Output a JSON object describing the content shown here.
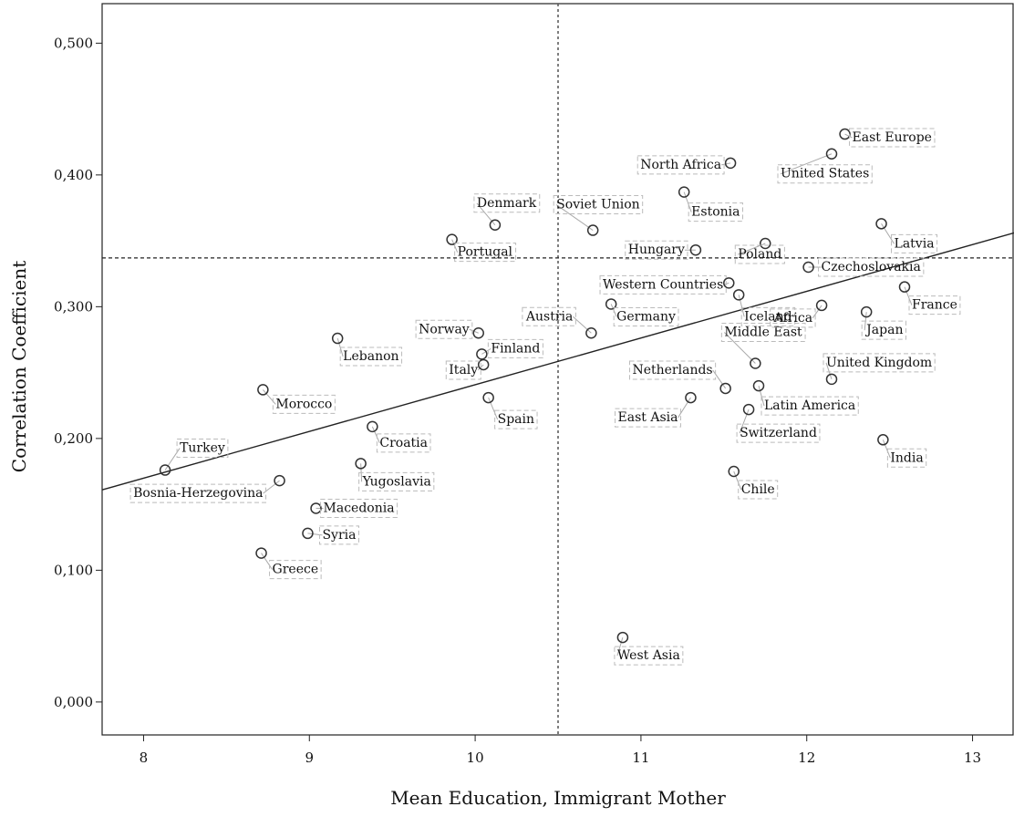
{
  "chart_data": {
    "type": "scatter",
    "xlabel": "Mean Education, Immigrant Mother",
    "ylabel": "Correlation Coefficient",
    "xlim": [
      7.75,
      13.25
    ],
    "ylim": [
      -0.025,
      0.53
    ],
    "x_ticks": [
      8,
      9,
      10,
      11,
      12,
      13
    ],
    "x_tick_labels": [
      "8",
      "9",
      "10",
      "11",
      "12",
      "13"
    ],
    "y_ticks": [
      0.0,
      0.1,
      0.2,
      0.3,
      0.4,
      0.5
    ],
    "y_tick_labels": [
      "0,000",
      "0,100",
      "0,200",
      "0,300",
      "0,400",
      "0,500"
    ],
    "reference_lines": {
      "vertical_x": 10.5,
      "horizontal_y": 0.337,
      "style": "dashed"
    },
    "fit_line": {
      "x": [
        7.75,
        13.25
      ],
      "y": [
        0.161,
        0.356
      ]
    },
    "points": [
      {
        "label": "Turkey",
        "x": 8.13,
        "y": 0.176
      },
      {
        "label": "Bosnia-Herzegovina",
        "x": 8.82,
        "y": 0.168
      },
      {
        "label": "Greece",
        "x": 8.71,
        "y": 0.113
      },
      {
        "label": "Syria",
        "x": 8.99,
        "y": 0.128
      },
      {
        "label": "Macedonia",
        "x": 9.04,
        "y": 0.147
      },
      {
        "label": "Morocco",
        "x": 8.72,
        "y": 0.237
      },
      {
        "label": "Lebanon",
        "x": 9.17,
        "y": 0.276
      },
      {
        "label": "Yugoslavia",
        "x": 9.31,
        "y": 0.181
      },
      {
        "label": "Croatia",
        "x": 9.38,
        "y": 0.209
      },
      {
        "label": "Portugal",
        "x": 9.86,
        "y": 0.351
      },
      {
        "label": "Denmark",
        "x": 10.12,
        "y": 0.362
      },
      {
        "label": "Norway",
        "x": 10.02,
        "y": 0.28
      },
      {
        "label": "Finland",
        "x": 10.04,
        "y": 0.264
      },
      {
        "label": "Italy",
        "x": 10.05,
        "y": 0.256
      },
      {
        "label": "Spain",
        "x": 10.08,
        "y": 0.231
      },
      {
        "label": "Soviet Union",
        "x": 10.71,
        "y": 0.358
      },
      {
        "label": "Austria",
        "x": 10.7,
        "y": 0.28
      },
      {
        "label": "Germany",
        "x": 10.82,
        "y": 0.302
      },
      {
        "label": "West Asia",
        "x": 10.89,
        "y": 0.049
      },
      {
        "label": "Hungary",
        "x": 11.33,
        "y": 0.343
      },
      {
        "label": "Estonia",
        "x": 11.26,
        "y": 0.387
      },
      {
        "label": "North Africa",
        "x": 11.54,
        "y": 0.409
      },
      {
        "label": "East Asia",
        "x": 11.3,
        "y": 0.231
      },
      {
        "label": "Netherlands",
        "x": 11.51,
        "y": 0.238
      },
      {
        "label": "Western Countries",
        "x": 11.53,
        "y": 0.318
      },
      {
        "label": "Iceland",
        "x": 11.59,
        "y": 0.309
      },
      {
        "label": "Poland",
        "x": 11.75,
        "y": 0.348
      },
      {
        "label": "Chile",
        "x": 11.56,
        "y": 0.175
      },
      {
        "label": "Switzerland",
        "x": 11.65,
        "y": 0.222
      },
      {
        "label": "Middle East",
        "x": 11.69,
        "y": 0.257
      },
      {
        "label": "Latin America",
        "x": 11.71,
        "y": 0.24
      },
      {
        "label": "Czechoslovakia",
        "x": 12.01,
        "y": 0.33
      },
      {
        "label": "Africa",
        "x": 12.09,
        "y": 0.301
      },
      {
        "label": "United States",
        "x": 12.15,
        "y": 0.416
      },
      {
        "label": "East Europe",
        "x": 12.23,
        "y": 0.431
      },
      {
        "label": "United Kingdom",
        "x": 12.15,
        "y": 0.245
      },
      {
        "label": "Japan",
        "x": 12.36,
        "y": 0.296
      },
      {
        "label": "Latvia",
        "x": 12.45,
        "y": 0.363
      },
      {
        "label": "India",
        "x": 12.46,
        "y": 0.199
      },
      {
        "label": "France",
        "x": 12.59,
        "y": 0.315
      }
    ]
  }
}
